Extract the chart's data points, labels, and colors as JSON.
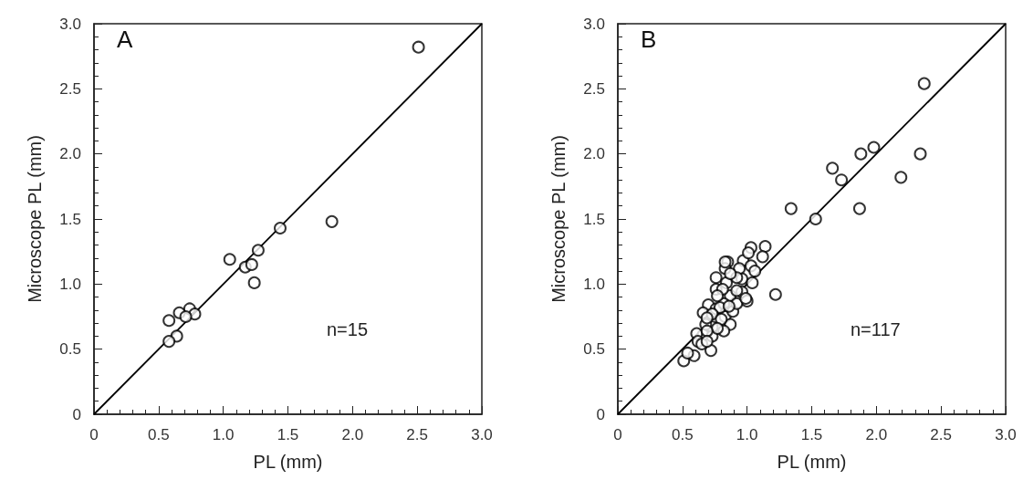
{
  "chart_data": [
    {
      "type": "scatter",
      "title": "A",
      "xlabel": "PL (mm)",
      "ylabel": "Microscope PL (mm)",
      "annotations": [
        "n=15"
      ],
      "xlim": [
        0,
        3
      ],
      "ylim": [
        0,
        3
      ],
      "xticks": [
        0,
        {
          "value": 0.5,
          "label": "0.5"
        },
        {
          "value": 1,
          "label": "1.0"
        },
        {
          "value": 1.5,
          "label": "1.5"
        },
        {
          "value": 2,
          "label": "2.0"
        },
        {
          "value": 2.5,
          "label": "2.5"
        },
        {
          "value": 3,
          "label": "3.0"
        }
      ],
      "yticks": [
        0,
        {
          "value": 0.5,
          "label": "0.5"
        },
        {
          "value": 1,
          "label": "1.0"
        },
        {
          "value": 1.5,
          "label": "1.5"
        },
        {
          "value": 2,
          "label": "2.0"
        },
        {
          "value": 2.5,
          "label": "2.5"
        },
        {
          "value": 3,
          "label": "3.0"
        }
      ],
      "grid": false,
      "series": [
        {
          "color": "#000000",
          "marker": "circle",
          "x": [
            2.51,
            1.84,
            1.44,
            1.27,
            1.05,
            1.17,
            1.22,
            1.24,
            0.74,
            0.78,
            0.66,
            0.71,
            0.58,
            0.64,
            0.58
          ],
          "values": [
            2.82,
            1.48,
            1.43,
            1.26,
            1.19,
            1.13,
            1.15,
            1.01,
            0.81,
            0.77,
            0.78,
            0.75,
            0.72,
            0.6,
            0.56
          ]
        },
        {
          "type": "line",
          "color": "#000000",
          "line_style": "solid",
          "marker": "none",
          "x": [
            0,
            3
          ],
          "values": [
            0,
            3
          ]
        }
      ]
    },
    {
      "type": "scatter",
      "title": "B",
      "xlabel": "PL (mm)",
      "ylabel": "Microscope PL (mm)",
      "annotations": [
        "n=117"
      ],
      "xlim": [
        0,
        3
      ],
      "ylim": [
        0,
        3
      ],
      "xticks": [
        0,
        {
          "value": 0.5,
          "label": "0.5"
        },
        {
          "value": 1,
          "label": "1.0"
        },
        {
          "value": 1.5,
          "label": "1.5"
        },
        {
          "value": 2,
          "label": "2.0"
        },
        {
          "value": 2.5,
          "label": "2.5"
        },
        {
          "value": 3,
          "label": "3.0"
        }
      ],
      "yticks": [
        0,
        {
          "value": 0.5,
          "label": "0.5"
        },
        {
          "value": 1,
          "label": "1.0"
        },
        {
          "value": 1.5,
          "label": "1.5"
        },
        {
          "value": 2,
          "label": "2.0"
        },
        {
          "value": 2.5,
          "label": "2.5"
        },
        {
          "value": 3,
          "label": "3.0"
        }
      ],
      "grid": false,
      "series": [
        {
          "color": "#000000",
          "marker": "circle",
          "x": [
            2.37,
            2.34,
            2.19,
            1.98,
            1.88,
            1.66,
            1.73,
            1.87,
            1.34,
            1.53,
            1.22,
            1.14,
            1.03,
            1.12,
            0.97,
            1.03,
            0.85,
            0.83,
            0.76,
            0.84,
            0.96,
            1.04,
            0.76,
            0.96,
            1.0,
            0.87,
            0.7,
            0.66,
            0.76,
            0.83,
            0.89,
            0.87,
            0.73,
            0.68,
            0.82,
            0.66,
            0.61,
            0.73,
            0.62,
            0.72,
            0.59,
            0.51,
            0.54,
            0.94,
            0.92,
            0.87,
            0.81,
            0.92,
            0.82,
            0.92,
            0.79,
            0.86,
            0.73,
            0.69,
            0.8,
            0.77,
            0.69,
            0.65,
            0.69,
            0.99,
            1.06,
            1.01,
            0.77,
            0.83
          ],
          "values": [
            2.54,
            2.0,
            1.82,
            2.05,
            2.0,
            1.89,
            1.8,
            1.58,
            1.58,
            1.5,
            0.92,
            1.29,
            1.28,
            1.21,
            1.18,
            1.14,
            1.17,
            1.12,
            1.05,
            1.01,
            1.04,
            1.01,
            0.96,
            0.94,
            0.87,
            0.91,
            0.84,
            0.78,
            0.81,
            0.75,
            0.79,
            0.69,
            0.67,
            0.69,
            0.64,
            0.61,
            0.62,
            0.6,
            0.56,
            0.49,
            0.45,
            0.41,
            0.47,
            1.12,
            1.05,
            1.08,
            0.96,
            0.95,
            0.85,
            0.85,
            0.82,
            0.83,
            0.77,
            0.74,
            0.73,
            0.66,
            0.64,
            0.54,
            0.56,
            0.89,
            1.1,
            1.24,
            0.91,
            1.17
          ]
        },
        {
          "type": "line",
          "color": "#000000",
          "line_style": "solid",
          "marker": "none",
          "x": [
            0,
            3
          ],
          "values": [
            0,
            3
          ]
        }
      ]
    }
  ]
}
